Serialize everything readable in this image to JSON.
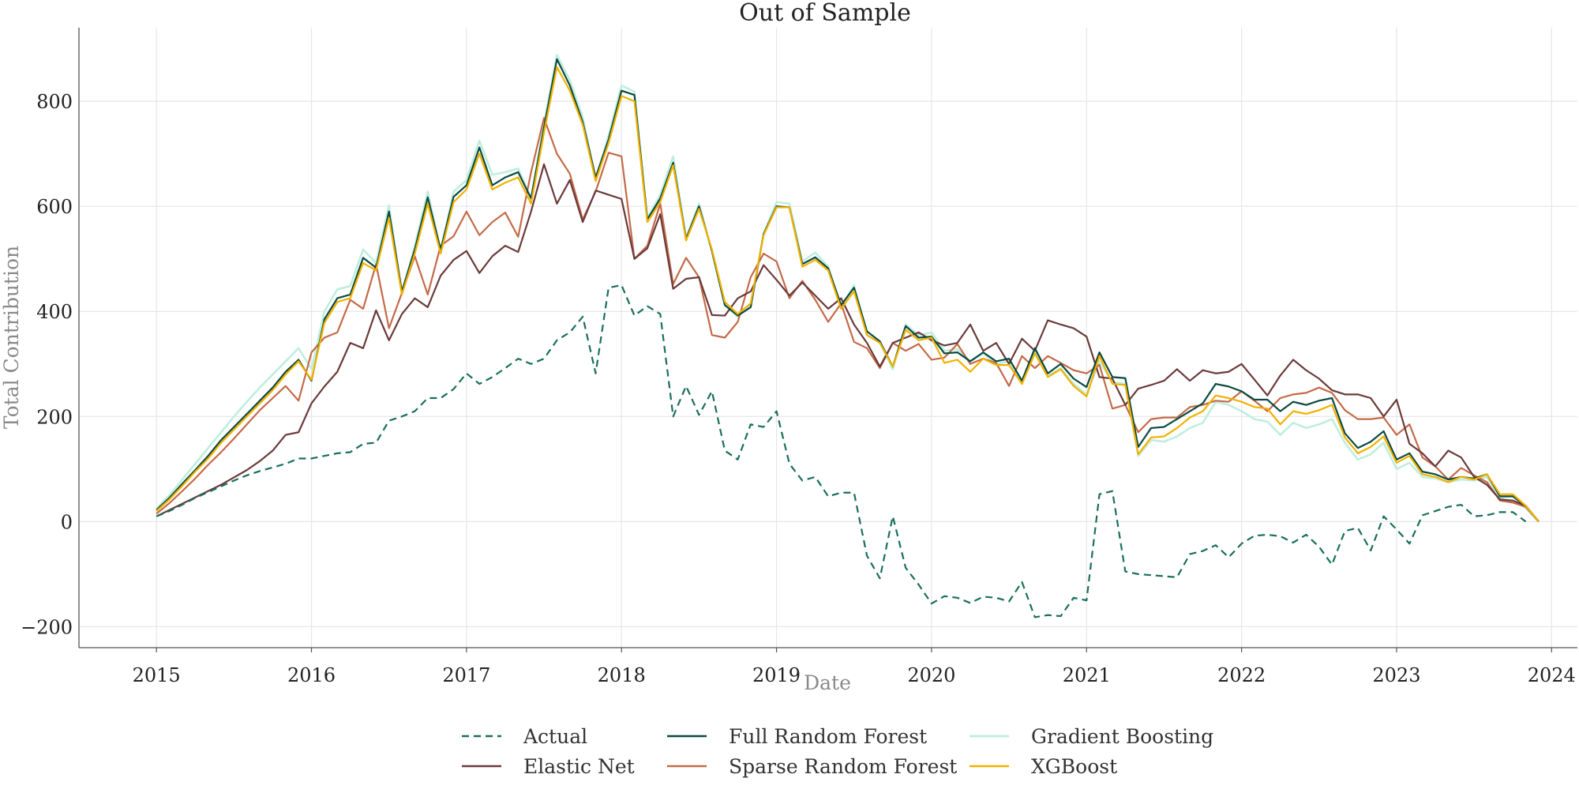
{
  "chart_data": {
    "type": "line",
    "title": "Out of Sample",
    "xlabel": "Date",
    "ylabel": "Total Contribution",
    "xlim": [
      "2014-07-01",
      "2024-03-01"
    ],
    "ylim": [
      -240,
      940
    ],
    "x_ticks": [
      "2015",
      "2016",
      "2017",
      "2018",
      "2019",
      "2020",
      "2021",
      "2022",
      "2023",
      "2024"
    ],
    "y_ticks": [
      -200,
      0,
      200,
      400,
      600,
      800
    ],
    "y_tick_labels": [
      "−200",
      "0",
      "200",
      "400",
      "600",
      "800"
    ],
    "grid": true,
    "legend_position": "bottom-center",
    "x_start": "2015-01",
    "x_step": "1 month",
    "series": [
      {
        "name": "Actual",
        "color": "#1a6e5c",
        "dashed": true,
        "values": [
          10,
          20,
          32,
          45,
          56,
          67,
          78,
          88,
          96,
          103,
          110,
          120,
          120,
          125,
          130,
          132,
          148,
          150,
          192,
          200,
          210,
          235,
          235,
          252,
          282,
          262,
          275,
          292,
          310,
          300,
          310,
          345,
          360,
          390,
          282,
          445,
          450,
          392,
          410,
          395,
          200,
          258,
          203,
          248,
          135,
          118,
          185,
          180,
          210,
          110,
          78,
          85,
          48,
          55,
          55,
          -65,
          -108,
          10,
          -88,
          -120,
          -156,
          -142,
          -145,
          -155,
          -143,
          -145,
          -152,
          -115,
          -182,
          -178,
          -180,
          -145,
          -150,
          52,
          58,
          -95,
          -100,
          -102,
          -104,
          -106,
          -62,
          -56,
          -45,
          -68,
          -42,
          -27,
          -25,
          -28,
          -40,
          -25,
          -48,
          -82,
          -18,
          -12,
          -55,
          10,
          -15,
          -42,
          12,
          20,
          28,
          32,
          10,
          12,
          18,
          18,
          0
        ]
      },
      {
        "name": "Elastic Net",
        "color": "#6b3a3a",
        "dashed": false,
        "values": [
          10,
          22,
          34,
          46,
          58,
          70,
          84,
          98,
          115,
          135,
          165,
          170,
          225,
          257,
          285,
          340,
          330,
          402,
          345,
          395,
          425,
          408,
          468,
          498,
          515,
          473,
          505,
          525,
          513,
          590,
          680,
          605,
          650,
          570,
          630,
          622,
          614,
          500,
          520,
          585,
          443,
          462,
          465,
          393,
          392,
          425,
          438,
          488,
          460,
          430,
          455,
          430,
          405,
          425,
          375,
          340,
          295,
          340,
          350,
          360,
          345,
          335,
          340,
          375,
          325,
          340,
          300,
          348,
          325,
          383,
          375,
          368,
          352,
          275,
          272,
          222,
          253,
          260,
          268,
          290,
          268,
          288,
          282,
          285,
          300,
          270,
          240,
          278,
          308,
          288,
          272,
          250,
          242,
          242,
          235,
          200,
          232,
          148,
          130,
          105,
          135,
          122,
          85,
          70,
          42,
          40,
          30,
          0
        ]
      },
      {
        "name": "Full Random Forest",
        "color": "#0a4a40",
        "dashed": false,
        "values": [
          22,
          45,
          72,
          98,
          125,
          155,
          180,
          205,
          230,
          255,
          285,
          308,
          268,
          385,
          425,
          432,
          502,
          483,
          590,
          438,
          518,
          617,
          517,
          618,
          640,
          712,
          640,
          655,
          665,
          615,
          750,
          880,
          830,
          760,
          655,
          727,
          820,
          812,
          575,
          615,
          683,
          538,
          600,
          515,
          412,
          392,
          408,
          547,
          600,
          598,
          490,
          503,
          482,
          412,
          445,
          362,
          343,
          295,
          372,
          350,
          352,
          320,
          322,
          305,
          322,
          305,
          310,
          268,
          330,
          282,
          300,
          272,
          256,
          322,
          275,
          273,
          142,
          178,
          180,
          195,
          210,
          225,
          262,
          257,
          248,
          232,
          232,
          210,
          228,
          222,
          230,
          235,
          168,
          140,
          152,
          172,
          118,
          130,
          95,
          90,
          80,
          85,
          82,
          90,
          48,
          48,
          30,
          0
        ]
      },
      {
        "name": "Gradient Boosting",
        "color": "#bfeedd",
        "dashed": false,
        "values": [
          25,
          50,
          80,
          110,
          140,
          170,
          200,
          228,
          255,
          280,
          305,
          330,
          290,
          400,
          442,
          448,
          518,
          492,
          602,
          432,
          525,
          628,
          515,
          628,
          650,
          725,
          660,
          665,
          672,
          615,
          758,
          888,
          840,
          770,
          650,
          735,
          830,
          818,
          578,
          622,
          695,
          540,
          605,
          515,
          412,
          390,
          410,
          548,
          608,
          605,
          495,
          512,
          485,
          408,
          450,
          355,
          340,
          290,
          375,
          355,
          360,
          325,
          328,
          305,
          320,
          300,
          305,
          262,
          325,
          278,
          292,
          262,
          242,
          305,
          265,
          262,
          125,
          155,
          152,
          162,
          178,
          188,
          228,
          222,
          210,
          195,
          190,
          165,
          188,
          178,
          185,
          195,
          150,
          118,
          128,
          150,
          100,
          112,
          85,
          82,
          75,
          80,
          78,
          85,
          45,
          48,
          25,
          0
        ]
      },
      {
        "name": "Sparse Random Forest",
        "color": "#c46a48",
        "dashed": false,
        "values": [
          15,
          35,
          58,
          82,
          108,
          132,
          158,
          185,
          212,
          235,
          258,
          230,
          322,
          350,
          360,
          422,
          405,
          490,
          368,
          435,
          505,
          432,
          525,
          543,
          590,
          545,
          570,
          588,
          542,
          665,
          768,
          700,
          662,
          575,
          628,
          702,
          695,
          500,
          525,
          605,
          452,
          502,
          465,
          355,
          350,
          380,
          465,
          510,
          495,
          425,
          458,
          422,
          380,
          415,
          342,
          330,
          292,
          340,
          325,
          338,
          308,
          312,
          338,
          300,
          310,
          302,
          258,
          315,
          292,
          315,
          302,
          288,
          282,
          298,
          215,
          222,
          170,
          195,
          198,
          198,
          218,
          222,
          230,
          228,
          248,
          230,
          210,
          235,
          242,
          245,
          255,
          245,
          212,
          195,
          195,
          198,
          165,
          185,
          122,
          105,
          80,
          102,
          88,
          75,
          40,
          36,
          28,
          0
        ]
      },
      {
        "name": "XGBoost",
        "color": "#f2b100",
        "dashed": false,
        "values": [
          20,
          42,
          68,
          95,
          120,
          150,
          175,
          200,
          225,
          250,
          280,
          305,
          270,
          378,
          418,
          425,
          492,
          478,
          578,
          432,
          510,
          605,
          510,
          608,
          632,
          700,
          632,
          645,
          655,
          605,
          740,
          865,
          820,
          755,
          648,
          720,
          810,
          800,
          570,
          608,
          678,
          535,
          595,
          518,
          418,
          395,
          415,
          545,
          598,
          598,
          485,
          498,
          478,
          405,
          438,
          355,
          340,
          295,
          365,
          345,
          350,
          302,
          308,
          285,
          310,
          298,
          298,
          262,
          320,
          275,
          290,
          258,
          238,
          315,
          262,
          260,
          128,
          160,
          162,
          178,
          198,
          210,
          240,
          235,
          228,
          218,
          215,
          185,
          210,
          205,
          212,
          222,
          160,
          130,
          142,
          162,
          112,
          125,
          90,
          85,
          75,
          85,
          80,
          90,
          52,
          52,
          30,
          0
        ]
      }
    ]
  },
  "legend": {
    "items": [
      "Actual",
      "Elastic Net",
      "Full Random Forest",
      "Sparse Random Forest",
      "Gradient Boosting",
      "XGBoost"
    ]
  }
}
